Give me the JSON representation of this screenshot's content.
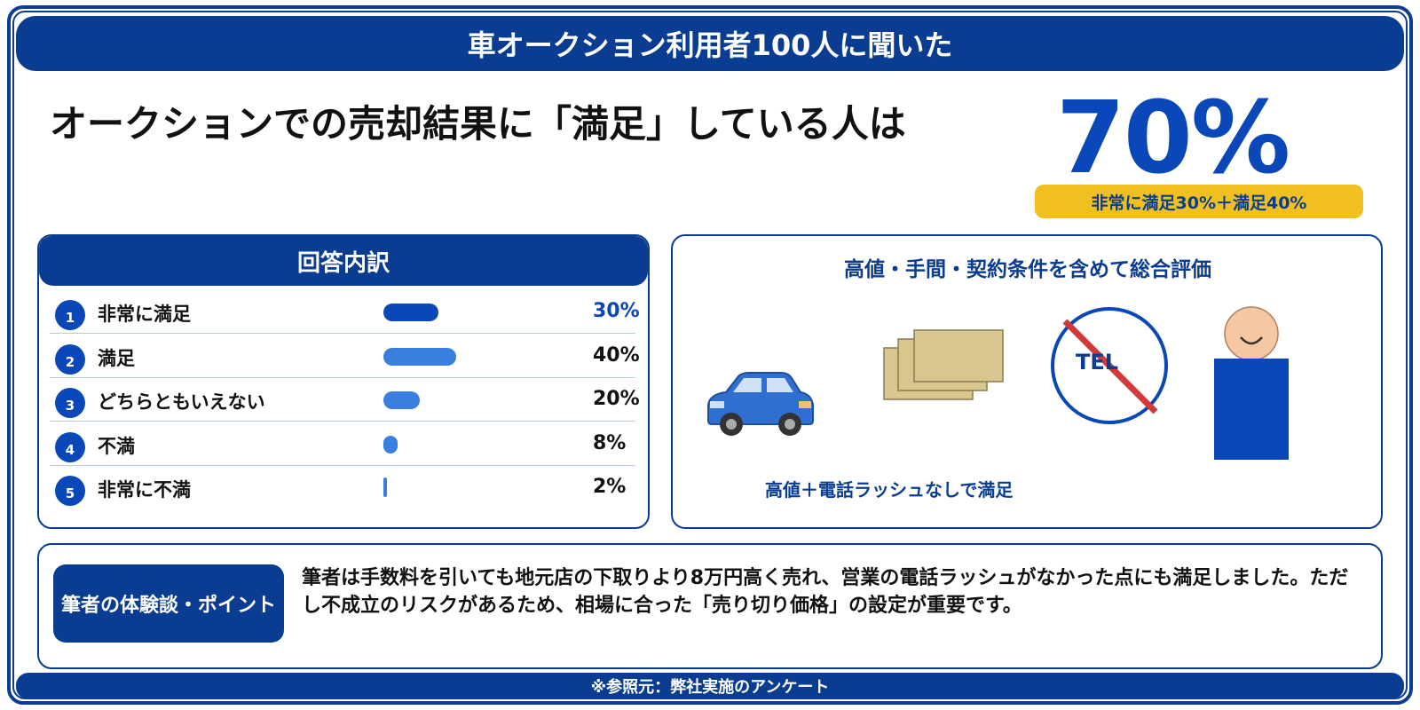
{
  "banner": {
    "title": "車オークション利用者100人に聞いた"
  },
  "headline": "オークションでの売却結果に「満足」している人は",
  "highlight": {
    "value": "70%",
    "breakdown": "非常に満足30%＋満足40%"
  },
  "chart_data": {
    "type": "bar",
    "title": "回答内訳",
    "categories": [
      "非常に満足",
      "満足",
      "どちらともいえない",
      "不満",
      "非常に不満"
    ],
    "values": [
      30,
      40,
      20,
      8,
      2
    ],
    "labels": [
      "30%",
      "40%",
      "20%",
      "8%",
      "2%"
    ],
    "numbers": [
      "1",
      "2",
      "3",
      "4",
      "5"
    ],
    "unit": "%",
    "orientation": "horizontal",
    "colors": {
      "highlight": "#0a47b8",
      "normal": "#3a7fe0"
    }
  },
  "evaluation": {
    "title": "高値・手間・契約条件を含めて総合評価",
    "caption": "高値＋電話ラッシュなしで満足",
    "tel_label": "TEL",
    "icons": [
      "car-icon",
      "documents-icon",
      "no-phone-icon",
      "person-icon"
    ]
  },
  "experience": {
    "badge": "筆者の体験談・ポイント",
    "text": "筆者は手数料を引いても地元店の下取りより8万円高く売れ、営業の電話ラッシュがなかった点にも満足しました。ただし不成立のリスクがあるため、相場に合った「売り切り価格」の設定が重要です。"
  },
  "footer": "※参照元：弊社実施のアンケート",
  "colors": {
    "brand": "#0a3d91",
    "accent": "#0a47b8",
    "yellow": "#f0c020",
    "bar": "#3a7fe0"
  }
}
